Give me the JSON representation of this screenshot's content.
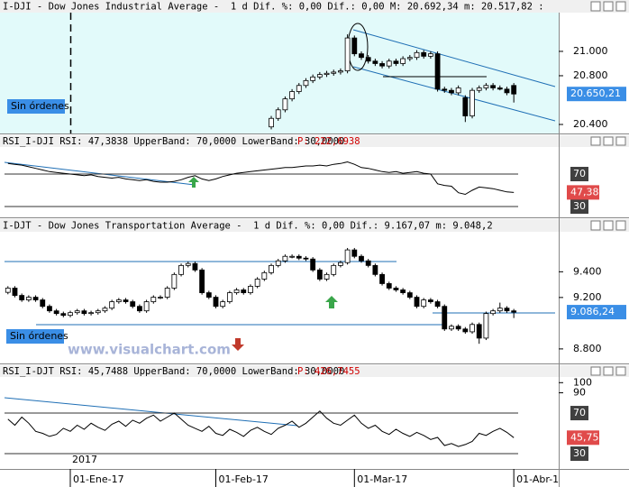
{
  "chart_data": [
    {
      "type": "candlestick",
      "title": "I-DJI - Dow Jones Industrial Average -  1 d Dif. %: 0,00 Dif.: 0,00 M: 20.692,34 m: 20.517,82 :",
      "orders_label": "Sin órdenes",
      "ylim": [
        20326,
        21318
      ],
      "yticks": [
        {
          "value": 21000,
          "label": "21.000"
        },
        {
          "value": 20800,
          "label": "20.800"
        },
        {
          "value": 20400,
          "label": "20.400"
        }
      ],
      "up_color": "#ffffff",
      "down_color": "#000000",
      "last_label": {
        "value": 20650.21,
        "label": "20.650,21",
        "color": "#3a8ee6"
      },
      "open": [
        null,
        null,
        null,
        null,
        null,
        null,
        null,
        null,
        null,
        null,
        null,
        null,
        null,
        null,
        null,
        null,
        null,
        null,
        null,
        null,
        null,
        null,
        null,
        null,
        null,
        null,
        null,
        null,
        null,
        null,
        null,
        null,
        null,
        null,
        null,
        null,
        null,
        null,
        20380,
        20450,
        20520,
        20610,
        20670,
        20720,
        20760,
        20790,
        20810,
        20820,
        20830,
        20840,
        21110,
        20980,
        20950,
        20920,
        20900,
        20880,
        20920,
        20900,
        20940,
        20950,
        20990,
        20960,
        20980,
        20690,
        20680,
        20660,
        20620,
        20470,
        20680,
        20700,
        20720,
        20700,
        20690,
        20720
      ],
      "high": [
        null,
        null,
        null,
        null,
        null,
        null,
        null,
        null,
        null,
        null,
        null,
        null,
        null,
        null,
        null,
        null,
        null,
        null,
        null,
        null,
        null,
        null,
        null,
        null,
        null,
        null,
        null,
        null,
        null,
        null,
        null,
        null,
        null,
        null,
        null,
        null,
        null,
        null,
        20470,
        20540,
        20630,
        20690,
        20740,
        20780,
        20810,
        20830,
        20840,
        20850,
        20860,
        21140,
        21130,
        21000,
        20970,
        20940,
        20920,
        20940,
        20940,
        20960,
        20970,
        21010,
        21010,
        21000,
        21000,
        20710,
        20700,
        20720,
        20640,
        20700,
        20720,
        20740,
        20740,
        20720,
        20710,
        20740
      ],
      "low": [
        null,
        null,
        null,
        null,
        null,
        null,
        null,
        null,
        null,
        null,
        null,
        null,
        null,
        null,
        null,
        null,
        null,
        null,
        null,
        null,
        null,
        null,
        null,
        null,
        null,
        null,
        null,
        null,
        null,
        null,
        null,
        null,
        null,
        null,
        null,
        null,
        null,
        null,
        20360,
        20430,
        20500,
        20590,
        20650,
        20700,
        20740,
        20770,
        20790,
        20800,
        20810,
        20820,
        20960,
        20930,
        20900,
        20880,
        20860,
        20860,
        20880,
        20880,
        20920,
        20930,
        20940,
        20940,
        20670,
        20660,
        20640,
        20640,
        20420,
        20450,
        20660,
        20680,
        20680,
        20680,
        20640,
        20580
      ],
      "close": [
        null,
        null,
        null,
        null,
        null,
        null,
        null,
        null,
        null,
        null,
        null,
        null,
        null,
        null,
        null,
        null,
        null,
        null,
        null,
        null,
        null,
        null,
        null,
        null,
        null,
        null,
        null,
        null,
        null,
        null,
        null,
        null,
        null,
        null,
        null,
        null,
        null,
        null,
        20450,
        20520,
        20610,
        20670,
        20720,
        20760,
        20790,
        20810,
        20820,
        20830,
        20840,
        21110,
        20980,
        20950,
        20920,
        20900,
        20880,
        20920,
        20900,
        20940,
        20950,
        20990,
        20960,
        20980,
        20690,
        20680,
        20660,
        20700,
        20470,
        20680,
        20700,
        20720,
        20700,
        20690,
        20660,
        20650
      ]
    },
    {
      "type": "line",
      "title": "RSI_I-DJI RSI: 47,3838 UpperBand: 70,0000 LowerBand: 30,0000",
      "period_label": "P: 222,6938",
      "ylim": [
        16.7,
        103.3
      ],
      "bands": [
        70,
        30
      ],
      "color": "#000000",
      "last_label": {
        "value": 47.38,
        "label": "47,38",
        "color": "#e04a4a"
      },
      "values": [
        83,
        82,
        81,
        79,
        77,
        75,
        73,
        72,
        71,
        70,
        69,
        68,
        69,
        67,
        66,
        65,
        66,
        64,
        63,
        62,
        63,
        61,
        60,
        60,
        61,
        63,
        66,
        68,
        64,
        62,
        64,
        67,
        69,
        71,
        72,
        73,
        74,
        75,
        76,
        77,
        78,
        78,
        79,
        80,
        80,
        81,
        80,
        82,
        83,
        85,
        82,
        78,
        77,
        75,
        73,
        72,
        73,
        71,
        72,
        73,
        71,
        70,
        58,
        56,
        55,
        47,
        45,
        50,
        54,
        53,
        52,
        50,
        48,
        47.38
      ]
    },
    {
      "type": "candlestick",
      "title": "I-DJT - Dow Jones Transportation Average -  1 d Dif. %: 0,00 Dif.: 9.167,07 m: 9.048,2",
      "orders_label": "Sin órdenes",
      "ylim": [
        8687,
        9711
      ],
      "yticks": [
        {
          "value": 9400,
          "label": "9.400"
        },
        {
          "value": 9200,
          "label": "9.200"
        },
        {
          "value": 8800,
          "label": "8.800"
        }
      ],
      "up_color": "#ffffff",
      "down_color": "#000000",
      "last_label": {
        "value": 9086.24,
        "label": "9.086,24",
        "color": "#3a8ee6"
      },
      "open": [
        9240,
        9273,
        9216,
        9181,
        9202,
        9181,
        9131,
        9096,
        9075,
        9061,
        9082,
        9096,
        9075,
        9082,
        9096,
        9117,
        9167,
        9181,
        9167,
        9131,
        9096,
        9167,
        9202,
        9202,
        9273,
        9379,
        9449,
        9464,
        9414,
        9237,
        9202,
        9131,
        9167,
        9237,
        9259,
        9237,
        9287,
        9343,
        9393,
        9449,
        9485,
        9520,
        9520,
        9506,
        9499,
        9414,
        9343,
        9379,
        9449,
        9471,
        9570,
        9520,
        9485,
        9449,
        9379,
        9308,
        9273,
        9259,
        9237,
        9202,
        9131,
        9181,
        9167,
        9131,
        8955,
        8976,
        8955,
        8933,
        8990,
        8884,
        9075,
        9096,
        9117,
        9096
      ],
      "high": [
        9288,
        9288,
        9231,
        9217,
        9217,
        9196,
        9146,
        9111,
        9090,
        9097,
        9111,
        9111,
        9097,
        9111,
        9132,
        9182,
        9196,
        9196,
        9182,
        9146,
        9182,
        9217,
        9217,
        9288,
        9394,
        9464,
        9479,
        9479,
        9429,
        9252,
        9217,
        9182,
        9252,
        9274,
        9274,
        9302,
        9358,
        9408,
        9464,
        9500,
        9535,
        9535,
        9535,
        9521,
        9514,
        9429,
        9394,
        9464,
        9486,
        9585,
        9585,
        9535,
        9500,
        9464,
        9394,
        9323,
        9288,
        9274,
        9252,
        9217,
        9196,
        9196,
        9182,
        9146,
        8991,
        8991,
        8970,
        9005,
        9005,
        9090,
        9111,
        9160,
        9132,
        9111
      ],
      "low": [
        9225,
        9201,
        9166,
        9166,
        9166,
        9116,
        9081,
        9060,
        9046,
        9046,
        9067,
        9060,
        9060,
        9067,
        9081,
        9102,
        9152,
        9152,
        9116,
        9081,
        9081,
        9152,
        9187,
        9187,
        9258,
        9364,
        9434,
        9399,
        9222,
        9187,
        9116,
        9116,
        9152,
        9222,
        9222,
        9222,
        9272,
        9328,
        9378,
        9434,
        9470,
        9505,
        9491,
        9484,
        9399,
        9328,
        9328,
        9364,
        9434,
        9456,
        9505,
        9470,
        9434,
        9364,
        9293,
        9258,
        9244,
        9222,
        9187,
        9116,
        9116,
        9152,
        9116,
        8940,
        8940,
        8940,
        8918,
        8918,
        8840,
        8869,
        9060,
        9081,
        9081,
        9040
      ],
      "close": [
        9273,
        9216,
        9181,
        9202,
        9181,
        9131,
        9096,
        9075,
        9061,
        9082,
        9096,
        9075,
        9082,
        9096,
        9117,
        9167,
        9181,
        9167,
        9131,
        9096,
        9167,
        9202,
        9202,
        9273,
        9379,
        9449,
        9464,
        9414,
        9237,
        9202,
        9131,
        9167,
        9237,
        9259,
        9237,
        9287,
        9343,
        9393,
        9449,
        9485,
        9520,
        9520,
        9506,
        9499,
        9414,
        9343,
        9379,
        9449,
        9471,
        9570,
        9520,
        9485,
        9449,
        9379,
        9308,
        9273,
        9259,
        9237,
        9202,
        9131,
        9181,
        9167,
        9131,
        8955,
        8976,
        8955,
        8933,
        8990,
        8884,
        9075,
        9096,
        9117,
        9096,
        9086
      ]
    },
    {
      "type": "line",
      "title": "RSI_I-DJT RSI: 45,7488 UpperBand: 70,0000 LowerBand: 30,0000",
      "period_label": "P: 426,7455",
      "ylim": [
        14.9,
        105.6
      ],
      "yticks": [
        100,
        90
      ],
      "bands": [
        70,
        30
      ],
      "color": "#000000",
      "last_label": {
        "value": 45.75,
        "label": "45,75",
        "color": "#e04a4a"
      },
      "values": [
        64,
        58,
        66,
        60,
        52,
        50,
        47,
        49,
        55,
        52,
        58,
        54,
        60,
        56,
        53,
        59,
        62,
        57,
        63,
        60,
        65,
        68,
        62,
        66,
        70,
        64,
        58,
        55,
        52,
        57,
        50,
        48,
        54,
        51,
        47,
        53,
        56,
        52,
        49,
        55,
        58,
        62,
        56,
        60,
        66,
        72,
        65,
        60,
        58,
        63,
        68,
        60,
        55,
        58,
        52,
        49,
        54,
        50,
        47,
        51,
        48,
        44,
        46,
        38,
        40,
        37,
        39,
        42,
        50,
        48,
        52,
        55,
        51,
        45.75
      ]
    }
  ],
  "time_axis": {
    "year": "2017",
    "categories": [
      null,
      null,
      null,
      null,
      null,
      null,
      null,
      null,
      null,
      "01-Ene-17",
      null,
      null,
      null,
      null,
      null,
      null,
      null,
      null,
      null,
      null,
      null,
      null,
      null,
      null,
      null,
      null,
      null,
      null,
      null,
      null,
      "01-Feb-17",
      null,
      null,
      null,
      null,
      null,
      null,
      null,
      null,
      null,
      null,
      null,
      null,
      null,
      null,
      null,
      null,
      null,
      null,
      null,
      "01-Mar-17",
      null,
      null,
      null,
      null,
      null,
      null,
      null,
      null,
      null,
      null,
      null,
      null,
      null,
      null,
      null,
      null,
      null,
      null,
      null,
      null,
      null,
      null,
      "01-Abr-1"
    ]
  },
  "watermark": "www.visualchart.com"
}
